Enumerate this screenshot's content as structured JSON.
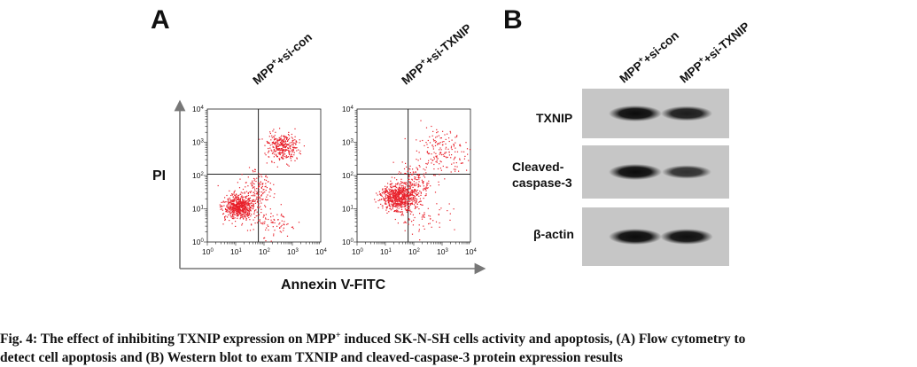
{
  "panel_a": {
    "letter": "A",
    "sample_labels": [
      {
        "base": "MPP",
        "sup": "+",
        "rest": "+si-con"
      },
      {
        "base": "MPP",
        "sup": "+",
        "rest": "+si-TXNIP"
      }
    ],
    "y_axis_title": "PI",
    "x_axis_title": "Annexin V-FITC",
    "tick_labels": [
      {
        "base": "10",
        "exp": "0"
      },
      {
        "base": "10",
        "exp": "1"
      },
      {
        "base": "10",
        "exp": "2"
      },
      {
        "base": "10",
        "exp": "3"
      },
      {
        "base": "10",
        "exp": "4"
      }
    ],
    "dot_color": "#e8202a"
  },
  "panel_b": {
    "letter": "B",
    "lane_labels": [
      {
        "base": "MPP",
        "sup": "+",
        "rest": "+si-con"
      },
      {
        "base": "MPP",
        "sup": "+",
        "rest": "+si-TXNIP"
      }
    ],
    "blots": [
      {
        "label_lines": [
          "TXNIP"
        ],
        "band_intensity": [
          1.0,
          0.8
        ]
      },
      {
        "label_lines": [
          "Cleaved-",
          "caspase-3"
        ],
        "band_intensity": [
          1.0,
          0.55
        ]
      },
      {
        "label_lines": [
          "β-actin"
        ],
        "band_intensity": [
          1.0,
          0.95
        ]
      }
    ]
  },
  "caption": {
    "line1_a": "Fig. 4: The effect of inhibiting TXNIP expression on MPP",
    "line1_sup": "+",
    "line1_b": " induced SK-N-SH cells activity and apoptosis, (A) Flow cytometry to",
    "line2": "detect cell apoptosis and (B) Western blot to exam TXNIP and cleaved-caspase-3 protein expression results"
  }
}
